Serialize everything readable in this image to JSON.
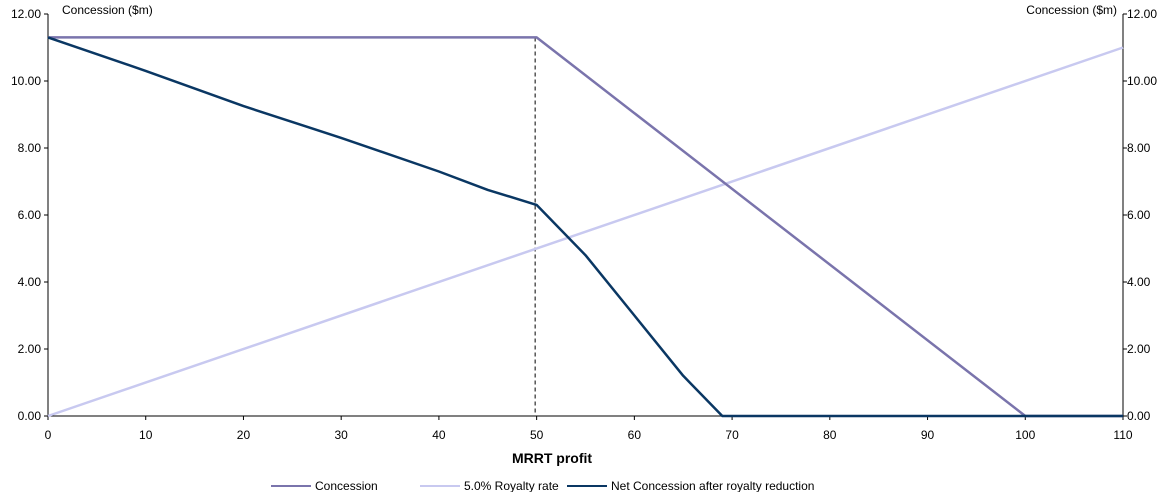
{
  "chart_data": {
    "type": "line",
    "title": "",
    "xlabel": "MRRT profit",
    "y_left_label": "Concession ($m)",
    "y_right_label": "Concession ($m)",
    "xlim": [
      0,
      110
    ],
    "ylim": [
      0,
      12
    ],
    "x_ticks": [
      0,
      10,
      20,
      30,
      40,
      50,
      60,
      70,
      80,
      90,
      100,
      110
    ],
    "x_tick_labels": [
      "0",
      "10",
      "20",
      "30",
      "40",
      "50",
      "60",
      "70",
      "80",
      "90",
      "100",
      "110"
    ],
    "y_ticks": [
      0,
      2,
      4,
      6,
      8,
      10,
      12
    ],
    "y_tick_labels": [
      "0.00",
      "2.00",
      "4.00",
      "6.00",
      "8.00",
      "10.00",
      "12.00"
    ],
    "grid": false,
    "legend_position": "bottom",
    "reference_line": {
      "x": 50,
      "style": "dashed"
    },
    "series": [
      {
        "name": "Concession",
        "color": "#7a74ac",
        "points": [
          [
            0,
            11.3
          ],
          [
            50,
            11.3
          ],
          [
            100,
            0
          ],
          [
            110,
            0
          ]
        ]
      },
      {
        "name": "5.0% Royalty rate",
        "color": "#c8c9f0",
        "points": [
          [
            0,
            0
          ],
          [
            110,
            11.0
          ]
        ]
      },
      {
        "name": "Net Concession after royalty reduction",
        "color": "#0a3763",
        "points": [
          [
            0,
            11.3
          ],
          [
            10,
            10.3
          ],
          [
            20,
            9.25
          ],
          [
            30,
            8.3
          ],
          [
            40,
            7.3
          ],
          [
            45,
            6.75
          ],
          [
            50,
            6.3
          ],
          [
            55,
            4.8
          ],
          [
            60,
            3.0
          ],
          [
            65,
            1.2
          ],
          [
            69,
            0
          ],
          [
            110,
            0
          ]
        ]
      }
    ]
  }
}
